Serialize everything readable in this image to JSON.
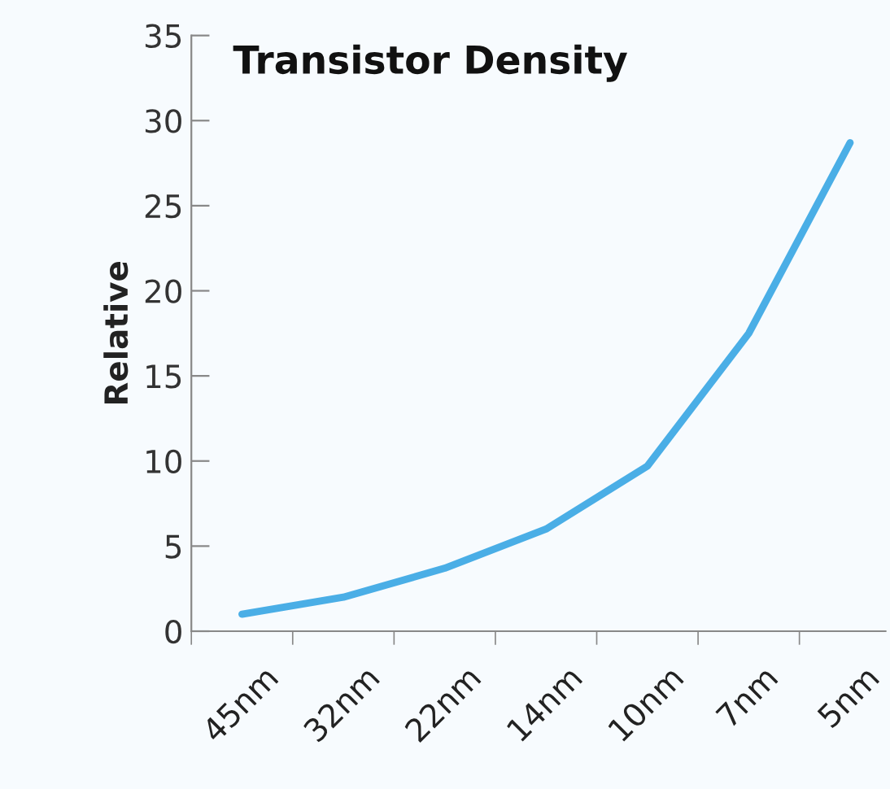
{
  "chart_data": {
    "type": "line",
    "title": "Transistor Density",
    "ylabel": "Relative",
    "categories": [
      "45nm",
      "32nm",
      "22nm",
      "14nm",
      "10nm",
      "7nm",
      "5nm"
    ],
    "series": [
      {
        "color": "#4aaee6",
        "values": [
          1.0,
          2.0,
          3.7,
          6.0,
          9.7,
          17.5,
          28.7
        ]
      }
    ],
    "ylim": [
      0,
      35
    ],
    "yticks": [
      0,
      5,
      10,
      15,
      20,
      25,
      30,
      35
    ],
    "grid": false,
    "legend": false,
    "marker": "none",
    "line_style": "solid"
  }
}
